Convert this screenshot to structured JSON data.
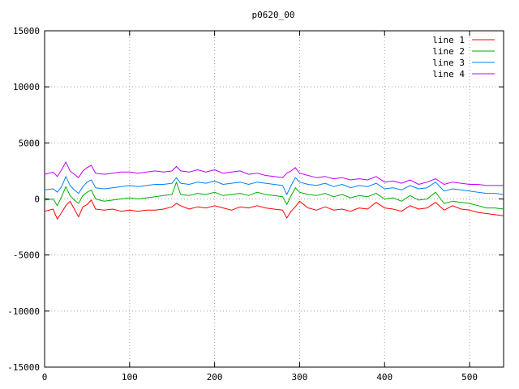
{
  "chart_data": {
    "type": "line",
    "title": "p0620_00",
    "xlabel": "",
    "ylabel": "",
    "xlim": [
      0,
      540
    ],
    "ylim": [
      -15000,
      15000
    ],
    "xticks": [
      0,
      100,
      200,
      300,
      400,
      500
    ],
    "yticks": [
      -15000,
      -10000,
      -5000,
      0,
      5000,
      10000,
      15000
    ],
    "grid": true,
    "legend_position": "top-right",
    "series": [
      {
        "name": "line 1",
        "color": "#ff0000",
        "x": [
          0,
          10,
          15,
          20,
          25,
          30,
          35,
          40,
          45,
          50,
          55,
          60,
          70,
          80,
          90,
          100,
          110,
          120,
          130,
          140,
          150,
          155,
          160,
          170,
          180,
          190,
          200,
          210,
          220,
          230,
          240,
          250,
          260,
          270,
          280,
          285,
          290,
          295,
          300,
          310,
          320,
          330,
          340,
          350,
          360,
          370,
          380,
          390,
          400,
          410,
          420,
          430,
          440,
          450,
          460,
          470,
          480,
          490,
          500,
          510,
          520,
          530,
          540
        ],
        "y": [
          -1100,
          -900,
          -1800,
          -1200,
          -600,
          -200,
          -900,
          -1600,
          -700,
          -500,
          -100,
          -900,
          -1000,
          -900,
          -1100,
          -1000,
          -1100,
          -1000,
          -1000,
          -900,
          -700,
          -400,
          -600,
          -900,
          -700,
          -800,
          -600,
          -800,
          -1000,
          -700,
          -800,
          -600,
          -800,
          -900,
          -1000,
          -1700,
          -1100,
          -700,
          -200,
          -800,
          -1000,
          -700,
          -1000,
          -900,
          -1100,
          -800,
          -900,
          -300,
          -800,
          -900,
          -1100,
          -600,
          -900,
          -800,
          -300,
          -1000,
          -600,
          -900,
          -1000,
          -1200,
          -1300,
          -1400,
          -1500
        ]
      },
      {
        "name": "line 2",
        "color": "#00b000",
        "x": [
          0,
          10,
          15,
          20,
          25,
          30,
          35,
          40,
          45,
          50,
          55,
          60,
          70,
          80,
          90,
          100,
          110,
          120,
          130,
          140,
          150,
          155,
          160,
          170,
          180,
          190,
          200,
          210,
          220,
          230,
          240,
          250,
          260,
          270,
          280,
          285,
          290,
          295,
          300,
          310,
          320,
          330,
          340,
          350,
          360,
          370,
          380,
          390,
          400,
          410,
          420,
          430,
          440,
          450,
          460,
          470,
          480,
          490,
          500,
          510,
          520,
          530,
          540
        ],
        "y": [
          -100,
          0,
          -600,
          200,
          1100,
          300,
          -100,
          -400,
          300,
          600,
          800,
          0,
          -200,
          -100,
          0,
          100,
          0,
          100,
          200,
          300,
          400,
          1500,
          400,
          300,
          500,
          400,
          600,
          300,
          400,
          500,
          300,
          600,
          400,
          300,
          200,
          -500,
          300,
          1000,
          600,
          400,
          300,
          500,
          200,
          400,
          100,
          300,
          200,
          500,
          0,
          100,
          -200,
          300,
          -100,
          0,
          600,
          -400,
          -200,
          -300,
          -400,
          -600,
          -800,
          -800,
          -900
        ]
      },
      {
        "name": "line 3",
        "color": "#0080ff",
        "x": [
          0,
          10,
          15,
          20,
          25,
          30,
          35,
          40,
          45,
          50,
          55,
          60,
          70,
          80,
          90,
          100,
          110,
          120,
          130,
          140,
          150,
          155,
          160,
          170,
          180,
          190,
          200,
          210,
          220,
          230,
          240,
          250,
          260,
          270,
          280,
          285,
          290,
          295,
          300,
          310,
          320,
          330,
          340,
          350,
          360,
          370,
          380,
          390,
          400,
          410,
          420,
          430,
          440,
          450,
          460,
          470,
          480,
          490,
          500,
          510,
          520,
          530,
          540
        ],
        "y": [
          800,
          900,
          600,
          1100,
          2000,
          1200,
          800,
          500,
          1100,
          1500,
          1700,
          1000,
          900,
          1000,
          1100,
          1200,
          1100,
          1200,
          1300,
          1300,
          1400,
          1900,
          1400,
          1300,
          1500,
          1400,
          1600,
          1300,
          1400,
          1500,
          1300,
          1500,
          1400,
          1300,
          1200,
          400,
          1200,
          1900,
          1500,
          1300,
          1200,
          1400,
          1100,
          1300,
          1000,
          1200,
          1100,
          1400,
          900,
          1000,
          800,
          1200,
          900,
          1000,
          1500,
          700,
          900,
          800,
          700,
          600,
          500,
          500,
          400
        ]
      },
      {
        "name": "line 4",
        "color": "#c000ff",
        "x": [
          0,
          10,
          15,
          20,
          25,
          30,
          35,
          40,
          45,
          50,
          55,
          60,
          70,
          80,
          90,
          100,
          110,
          120,
          130,
          140,
          150,
          155,
          160,
          170,
          180,
          190,
          200,
          210,
          220,
          230,
          240,
          250,
          260,
          270,
          280,
          285,
          290,
          295,
          300,
          310,
          320,
          330,
          340,
          350,
          360,
          370,
          380,
          390,
          400,
          410,
          420,
          430,
          440,
          450,
          460,
          470,
          480,
          490,
          500,
          510,
          520,
          530,
          540
        ],
        "y": [
          2200,
          2400,
          2000,
          2600,
          3300,
          2500,
          2200,
          1900,
          2500,
          2800,
          3000,
          2300,
          2200,
          2300,
          2400,
          2400,
          2300,
          2400,
          2500,
          2400,
          2500,
          2900,
          2500,
          2400,
          2600,
          2400,
          2600,
          2300,
          2400,
          2500,
          2200,
          2300,
          2100,
          2000,
          1900,
          2300,
          2500,
          2800,
          2300,
          2100,
          1900,
          2000,
          1800,
          1900,
          1700,
          1800,
          1700,
          2000,
          1500,
          1600,
          1400,
          1700,
          1300,
          1500,
          1800,
          1300,
          1500,
          1400,
          1300,
          1300,
          1200,
          1200,
          1200
        ]
      }
    ]
  }
}
